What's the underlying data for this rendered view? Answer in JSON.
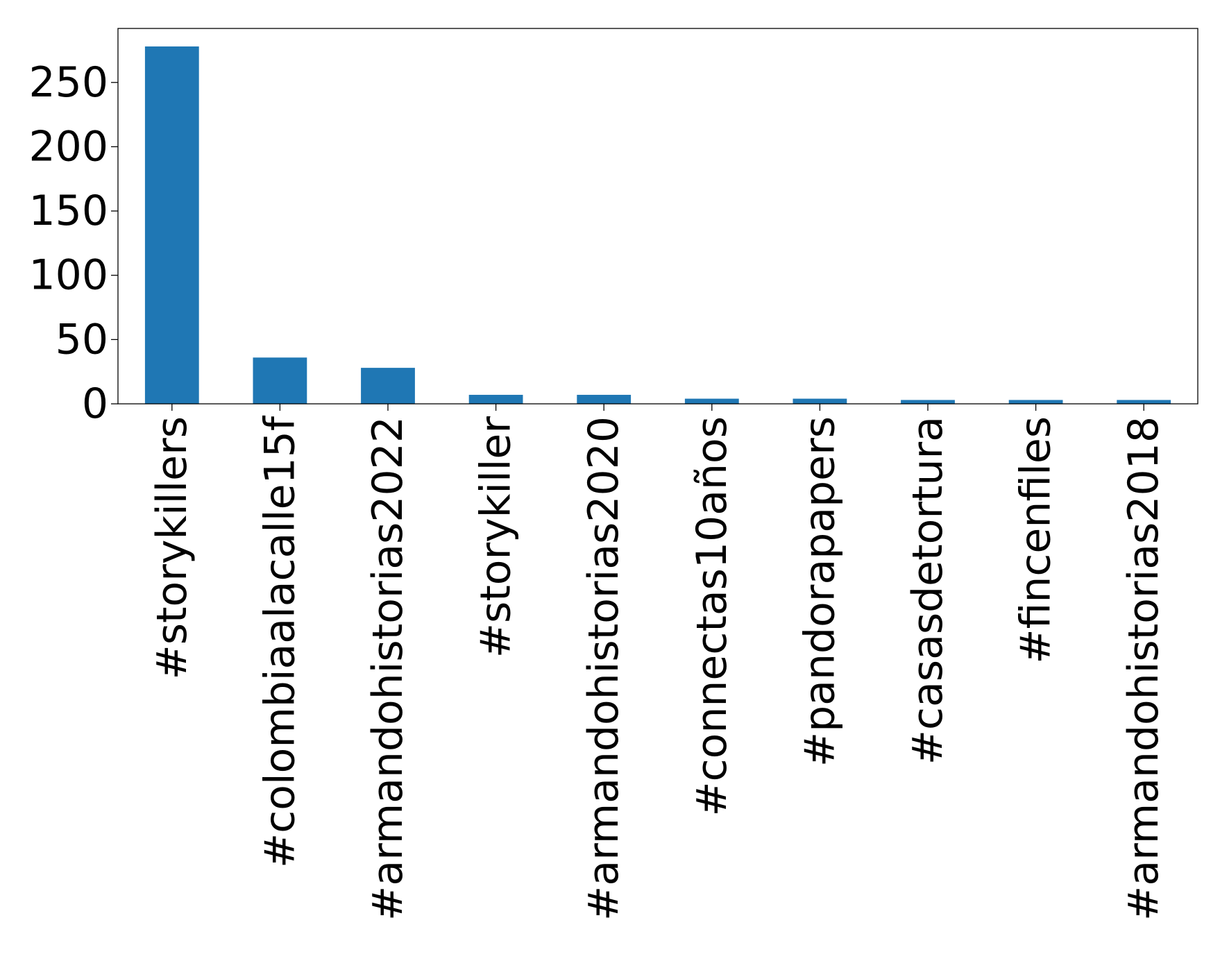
{
  "chart_data": {
    "type": "bar",
    "title": "",
    "xlabel": "",
    "ylabel": "",
    "categories": [
      "#storykillers",
      "#colombiaalacalle15f",
      "#armandohistorias2022",
      "#storykiller",
      "#armandohistorias2020",
      "#connectas10años",
      "#pandorapapers",
      "#casasdetortura",
      "#fincenfiles",
      "#armandohistorias2018"
    ],
    "values": [
      278,
      36,
      28,
      7,
      7,
      4,
      4,
      3,
      3,
      3
    ],
    "yticks": [
      0,
      50,
      100,
      150,
      200,
      250
    ],
    "ylim": [
      0,
      292
    ],
    "bar_color": "#1f77b4",
    "grid": false,
    "legend": "none"
  }
}
